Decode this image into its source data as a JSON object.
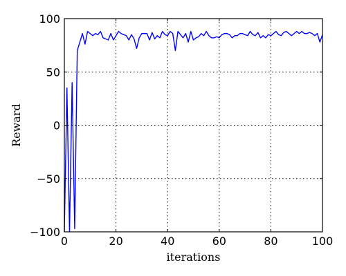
{
  "chart_data": {
    "type": "line",
    "title": "",
    "xlabel": "iterations",
    "ylabel": "Reward",
    "xlim": [
      0,
      100
    ],
    "ylim": [
      -100,
      100
    ],
    "xticks": [
      0,
      20,
      40,
      60,
      80,
      100
    ],
    "yticks": [
      -100,
      -50,
      0,
      50,
      100
    ],
    "xtick_labels": [
      "0",
      "20",
      "40",
      "60",
      "80",
      "100"
    ],
    "ytick_labels": [
      "−100",
      "−50",
      "0",
      "50",
      "100"
    ],
    "grid": true,
    "series": [
      {
        "name": "Reward",
        "color": "#0000ff",
        "x": [
          0,
          1,
          2,
          3,
          4,
          5,
          6,
          7,
          8,
          9,
          10,
          11,
          12,
          13,
          14,
          15,
          16,
          17,
          18,
          19,
          20,
          21,
          22,
          23,
          24,
          25,
          26,
          27,
          28,
          29,
          30,
          31,
          32,
          33,
          34,
          35,
          36,
          37,
          38,
          39,
          40,
          41,
          42,
          43,
          44,
          45,
          46,
          47,
          48,
          49,
          50,
          51,
          52,
          53,
          54,
          55,
          56,
          57,
          58,
          59,
          60,
          61,
          62,
          63,
          64,
          65,
          66,
          67,
          68,
          69,
          70,
          71,
          72,
          73,
          74,
          75,
          76,
          77,
          78,
          79,
          80,
          81,
          82,
          83,
          84,
          85,
          86,
          87,
          88,
          89,
          90,
          91,
          92,
          93,
          94,
          95,
          96,
          97,
          98,
          99,
          100
        ],
        "values": [
          -100,
          35,
          -100,
          40,
          -97,
          70,
          78,
          86,
          76,
          88,
          86,
          84,
          86,
          85,
          88,
          82,
          81,
          80,
          86,
          80,
          84,
          88,
          86,
          85,
          84,
          80,
          85,
          81,
          72,
          82,
          86,
          86,
          86,
          80,
          87,
          81,
          84,
          82,
          88,
          85,
          84,
          88,
          86,
          70,
          88,
          85,
          82,
          86,
          78,
          88,
          80,
          82,
          83,
          86,
          84,
          88,
          84,
          82,
          82,
          83,
          82,
          85,
          86,
          86,
          85,
          82,
          84,
          84,
          86,
          86,
          85,
          84,
          88,
          85,
          84,
          87,
          82,
          84,
          82,
          85,
          84,
          86,
          88,
          85,
          84,
          87,
          88,
          86,
          84,
          86,
          88,
          86,
          88,
          86,
          86,
          87,
          86,
          84,
          86,
          78,
          85
        ]
      }
    ]
  }
}
